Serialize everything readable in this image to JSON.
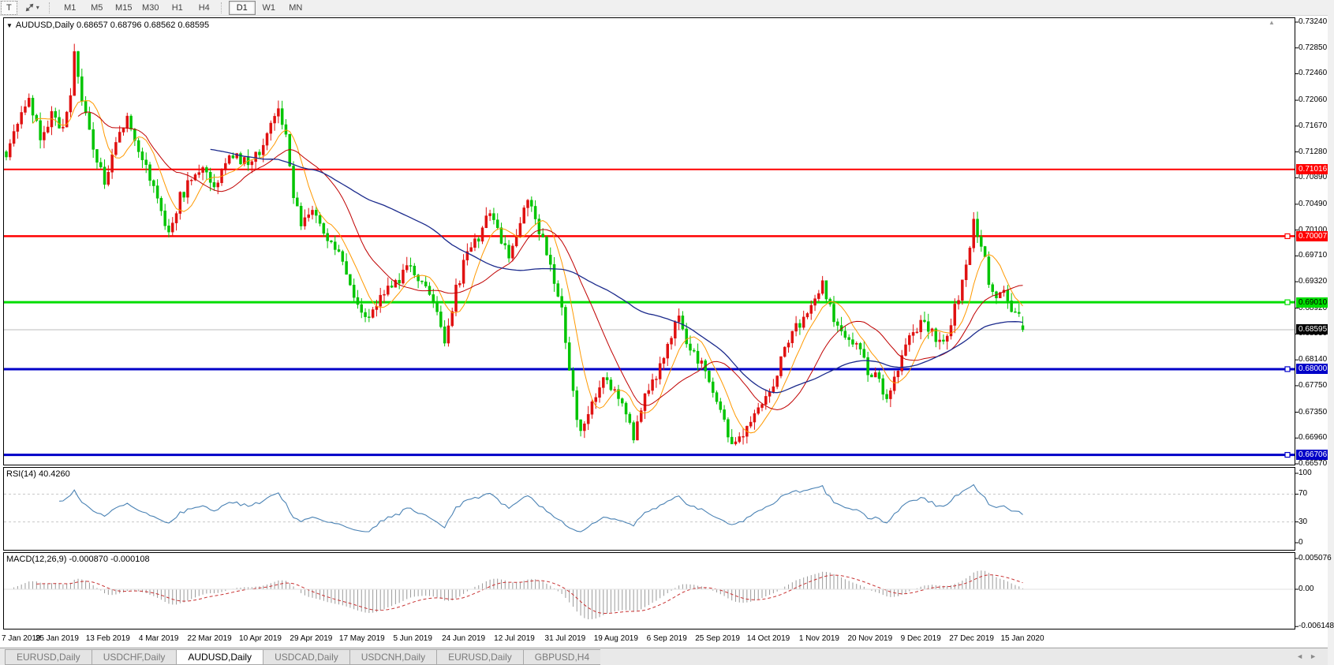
{
  "toolbar": {
    "text_tool_label": "T",
    "cursor_tool_name": "crosshair-cursor",
    "timeframes": [
      "M1",
      "M5",
      "M15",
      "M30",
      "H1",
      "H4",
      "D1",
      "W1",
      "MN"
    ],
    "active_timeframe": "D1"
  },
  "chart_header": {
    "symbol": "AUDUSD,Daily",
    "ohlc_text": "0.68657 0.68796 0.68562 0.68595"
  },
  "price_axis": {
    "tick_labels": [
      "0.73240",
      "0.72850",
      "0.72460",
      "0.72060",
      "0.71670",
      "0.71280",
      "0.70890",
      "0.70490",
      "0.70100",
      "0.69710",
      "0.69320",
      "0.68920",
      "0.68530",
      "0.68140",
      "0.67750",
      "0.67350",
      "0.66960",
      "0.66570"
    ]
  },
  "rsi_panel": {
    "label": "RSI(14) 40.4260",
    "axis_labels": [
      "100",
      "70",
      "30",
      "0"
    ]
  },
  "macd_panel": {
    "label": "MACD(12,26,9) -0.000870 -0.000108",
    "axis_labels": [
      "0.005076",
      "0.00",
      "-0.006148"
    ]
  },
  "date_axis": {
    "labels": [
      "7 Jan 2019",
      "25 Jan 2019",
      "13 Feb 2019",
      "4 Mar 2019",
      "22 Mar 2019",
      "10 Apr 2019",
      "29 Apr 2019",
      "17 May 2019",
      "5 Jun 2019",
      "24 Jun 2019",
      "12 Jul 2019",
      "31 Jul 2019",
      "19 Aug 2019",
      "6 Sep 2019",
      "25 Sep 2019",
      "14 Oct 2019",
      "1 Nov 2019",
      "20 Nov 2019",
      "9 Dec 2019",
      "27 Dec 2019",
      "15 Jan 2020"
    ]
  },
  "tabs": {
    "items": [
      {
        "label": "EURUSD,Daily",
        "active": false
      },
      {
        "label": "USDCHF,Daily",
        "active": false
      },
      {
        "label": "AUDUSD,Daily",
        "active": true
      },
      {
        "label": "USDCAD,Daily",
        "active": false
      },
      {
        "label": "USDCNH,Daily",
        "active": false
      },
      {
        "label": "EURUSD,Daily",
        "active": false
      },
      {
        "label": "GBPUSD,H4",
        "active": false
      }
    ],
    "scroll_left": "◄",
    "scroll_right": "►"
  },
  "chart_data": {
    "type": "candlestick",
    "symbol": "AUDUSD",
    "timeframe": "Daily",
    "last_ohlc": {
      "open": 0.68657,
      "high": 0.68796,
      "low": 0.68562,
      "close": 0.68595
    },
    "price_axis": {
      "top_price": 0.7324,
      "bottom_price": 0.6657
    },
    "x_range_dates": [
      "7 Jan 2019",
      "15 Jan 2020"
    ],
    "candles": {
      "count": 270,
      "up_color": "#e01010",
      "down_color": "#00c400",
      "close_anchors": [
        [
          0,
          0.7125
        ],
        [
          3,
          0.7175
        ],
        [
          6,
          0.721
        ],
        [
          9,
          0.715
        ],
        [
          12,
          0.7185
        ],
        [
          15,
          0.716
        ],
        [
          17,
          0.7215
        ],
        [
          18,
          0.7283
        ],
        [
          19,
          0.724
        ],
        [
          21,
          0.7185
        ],
        [
          24,
          0.711
        ],
        [
          26,
          0.7085
        ],
        [
          29,
          0.7135
        ],
        [
          32,
          0.7185
        ],
        [
          35,
          0.7125
        ],
        [
          38,
          0.709
        ],
        [
          41,
          0.7035
        ],
        [
          43,
          0.701
        ],
        [
          46,
          0.706
        ],
        [
          49,
          0.7085
        ],
        [
          52,
          0.7105
        ],
        [
          55,
          0.708
        ],
        [
          58,
          0.711
        ],
        [
          61,
          0.7125
        ],
        [
          64,
          0.7105
        ],
        [
          67,
          0.713
        ],
        [
          70,
          0.7165
        ],
        [
          72,
          0.7195
        ],
        [
          74,
          0.715
        ],
        [
          76,
          0.706
        ],
        [
          78,
          0.7015
        ],
        [
          81,
          0.7035
        ],
        [
          84,
          0.7
        ],
        [
          87,
          0.6985
        ],
        [
          90,
          0.694
        ],
        [
          93,
          0.6905
        ],
        [
          95,
          0.6875
        ],
        [
          98,
          0.6895
        ],
        [
          101,
          0.692
        ],
        [
          104,
          0.6935
        ],
        [
          107,
          0.696
        ],
        [
          110,
          0.6925
        ],
        [
          113,
          0.69
        ],
        [
          116,
          0.6845
        ],
        [
          119,
          0.692
        ],
        [
          122,
          0.6975
        ],
        [
          125,
          0.7
        ],
        [
          128,
          0.7035
        ],
        [
          131,
          0.6995
        ],
        [
          133,
          0.6965
        ],
        [
          136,
          0.702
        ],
        [
          138,
          0.706
        ],
        [
          141,
          0.701
        ],
        [
          144,
          0.6955
        ],
        [
          147,
          0.69
        ],
        [
          149,
          0.6795
        ],
        [
          152,
          0.67
        ],
        [
          155,
          0.6755
        ],
        [
          158,
          0.6785
        ],
        [
          161,
          0.677
        ],
        [
          164,
          0.674
        ],
        [
          166,
          0.6695
        ],
        [
          169,
          0.6755
        ],
        [
          172,
          0.679
        ],
        [
          175,
          0.684
        ],
        [
          178,
          0.688
        ],
        [
          181,
          0.6825
        ],
        [
          184,
          0.6805
        ],
        [
          187,
          0.677
        ],
        [
          190,
          0.672
        ],
        [
          192,
          0.669
        ],
        [
          193,
          0.6682
        ],
        [
          196,
          0.6705
        ],
        [
          199,
          0.6735
        ],
        [
          202,
          0.676
        ],
        [
          205,
          0.6815
        ],
        [
          208,
          0.6855
        ],
        [
          211,
          0.688
        ],
        [
          214,
          0.691
        ],
        [
          216,
          0.6925
        ],
        [
          219,
          0.688
        ],
        [
          222,
          0.6855
        ],
        [
          225,
          0.684
        ],
        [
          228,
          0.68
        ],
        [
          231,
          0.678
        ],
        [
          233,
          0.676
        ],
        [
          236,
          0.6805
        ],
        [
          239,
          0.6845
        ],
        [
          242,
          0.687
        ],
        [
          245,
          0.6855
        ],
        [
          248,
          0.684
        ],
        [
          251,
          0.689
        ],
        [
          253,
          0.6935
        ],
        [
          255,
          0.6985
        ],
        [
          256,
          0.7025
        ],
        [
          258,
          0.699
        ],
        [
          260,
          0.6935
        ],
        [
          262,
          0.6905
        ],
        [
          264,
          0.6925
        ],
        [
          266,
          0.6895
        ],
        [
          268,
          0.6875
        ],
        [
          269,
          0.68595
        ]
      ]
    },
    "moving_averages": [
      {
        "period": 8,
        "color": "#ff9900",
        "width": 1
      },
      {
        "period": 20,
        "color": "#c00000",
        "width": 1
      },
      {
        "period": 55,
        "color": "#1b2a8c",
        "width": 1.3
      }
    ],
    "hlines": [
      {
        "label": "0.71016",
        "value": 0.71016,
        "color": "#ff0000",
        "width": 2,
        "badge_bg": "#ff0000",
        "badge_fg": "#ffffff",
        "handle": false
      },
      {
        "label": "0.70007",
        "value": 0.70007,
        "color": "#ff0000",
        "width": 2.5,
        "badge_bg": "#ff0000",
        "badge_fg": "#ffffff",
        "handle": true
      },
      {
        "label": "0.69010",
        "value": 0.6901,
        "color": "#00dd00",
        "width": 3,
        "badge_bg": "#00dd00",
        "badge_fg": "#000000",
        "handle": true
      },
      {
        "label": "0.68000",
        "value": 0.68,
        "color": "#0000c8",
        "width": 3,
        "badge_bg": "#0000c8",
        "badge_fg": "#ffffff",
        "handle": true
      },
      {
        "label": "0.66706",
        "value": 0.66706,
        "color": "#0000c8",
        "width": 3,
        "badge_bg": "#0000c8",
        "badge_fg": "#ffffff",
        "handle": true
      }
    ],
    "current_price": {
      "label": "0.68595",
      "value": 0.68595,
      "line_color": "#bcbcbc",
      "badge_bg": "#000000",
      "badge_fg": "#ffffff"
    },
    "rsi": {
      "period": 14,
      "current_value": 40.426,
      "line_color": "#4a82b4",
      "levels": [
        70,
        30
      ],
      "range": [
        0,
        100
      ]
    },
    "macd": {
      "fast": 12,
      "slow": 26,
      "signal_period": 9,
      "current_value": -0.00087,
      "current_signal": -0.000108,
      "bar_color": "#9a9a9a",
      "signal_color": "#c83232",
      "axis_top_value": 0.005076,
      "axis_bottom_value": -0.006148
    }
  }
}
